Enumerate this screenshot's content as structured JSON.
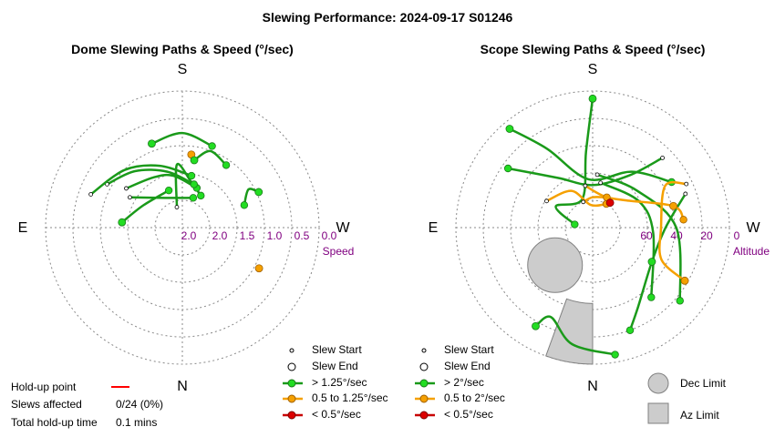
{
  "title": "Slewing Performance: 2024-09-17 S01246",
  "chart_data": [
    {
      "type": "polar",
      "title": "Dome Slewing Paths & Speed (°/sec)",
      "compass": {
        "top": "S",
        "bottom": "N",
        "left": "E",
        "right": "W"
      },
      "radial_axis": {
        "label": "Speed",
        "ticks": [
          "2.0",
          "1.5",
          "1.0",
          "0.5",
          "0.0"
        ],
        "rlim": [
          0,
          2.5
        ]
      },
      "paths": [
        {
          "class": "fast",
          "points": [
            [
              165,
              2.2
            ],
            [
              175,
              1.4
            ],
            [
              190,
              1.7
            ],
            [
              210,
              1.9
            ]
          ]
        },
        {
          "class": "fast",
          "points": [
            [
              125,
              1.3
            ],
            [
              150,
              1.5
            ],
            [
              170,
              1.6
            ],
            [
              200,
              1.8
            ]
          ]
        },
        {
          "class": "fast",
          "points": [
            [
              120,
              0.95
            ],
            [
              140,
              1.2
            ],
            [
              165,
              1.5
            ],
            [
              195,
              1.75
            ]
          ]
        },
        {
          "class": "fast",
          "points": [
            [
              110,
              0.75
            ],
            [
              135,
              1.05
            ],
            [
              160,
              1.35
            ],
            [
              190,
              1.6
            ]
          ]
        },
        {
          "class": "fast",
          "points": [
            [
              160,
              0.9
            ],
            [
              180,
              0.8
            ],
            [
              200,
              0.95
            ]
          ]
        },
        {
          "class": "fast",
          "points": [
            [
              190,
              1.3
            ],
            [
              200,
              1.05
            ],
            [
              215,
              1.15
            ]
          ]
        },
        {
          "class": "fast",
          "points": [
            [
              245,
              1.0
            ],
            [
              240,
              1.15
            ],
            [
              250,
              1.35
            ]
          ]
        },
        {
          "class": "fast",
          "points": [
            [
              95,
              1.45
            ],
            [
              120,
              1.75
            ],
            [
              160,
              1.85
            ]
          ]
        },
        {
          "class": "fast",
          "points": [
            [
              120,
              1.45
            ],
            [
              150,
              1.95
            ],
            [
              200,
              2.0
            ]
          ]
        }
      ],
      "ends": [
        {
          "class": "medium",
          "point": [
            187,
            1.2
          ]
        },
        {
          "class": "medium",
          "point": [
            298,
            0.95
          ]
        },
        {
          "class": "fast",
          "point": [
            160,
            0.9
          ]
        },
        {
          "class": "fast",
          "point": [
            190,
            1.3
          ]
        },
        {
          "class": "fast",
          "point": [
            245,
            1.0
          ]
        },
        {
          "class": "fast",
          "point": [
            95,
            1.45
          ]
        }
      ]
    },
    {
      "type": "polar",
      "title": "Scope Slewing Paths & Speed (°/sec)",
      "compass": {
        "top": "S",
        "bottom": "N",
        "left": "E",
        "right": "W"
      },
      "radial_axis": {
        "label": "Altitude",
        "ticks": [
          "60",
          "40",
          "20",
          "0"
        ],
        "rlim": [
          90,
          0
        ]
      },
      "paths": [
        {
          "class": "fast",
          "points": [
            [
              180,
              5
            ],
            [
              175,
              40
            ],
            [
              160,
              70
            ],
            [
              120,
              62
            ],
            [
              100,
              78
            ]
          ]
        },
        {
          "class": "fast",
          "points": [
            [
              140,
              5
            ],
            [
              150,
              30
            ],
            [
              175,
              58
            ],
            [
              215,
              45
            ],
            [
              240,
              30
            ]
          ]
        },
        {
          "class": "fast",
          "points": [
            [
              225,
              25
            ],
            [
              215,
              48
            ],
            [
              180,
              62
            ],
            [
              145,
              50
            ],
            [
              125,
              22
            ]
          ]
        },
        {
          "class": "fast",
          "points": [
            [
              250,
              25
            ],
            [
              270,
              42
            ],
            [
              300,
              45
            ],
            [
              330,
              30
            ],
            [
              340,
              18
            ]
          ]
        },
        {
          "class": "fast",
          "points": [
            [
              185,
              55
            ],
            [
              230,
              52
            ],
            [
              270,
              35
            ],
            [
              310,
              15
            ]
          ]
        },
        {
          "class": "fast",
          "points": [
            [
              190,
              60
            ],
            [
              240,
              55
            ],
            [
              275,
              50
            ],
            [
              320,
              30
            ]
          ]
        },
        {
          "class": "fast",
          "points": [
            [
              30,
              15
            ],
            [
              25,
              25
            ],
            [
              10,
              12
            ],
            [
              350,
              5
            ]
          ]
        },
        {
          "class": "medium",
          "points": [
            [
              170,
              62
            ],
            [
              200,
              68
            ],
            [
              230,
              62
            ],
            [
              255,
              35
            ],
            [
              265,
              30
            ]
          ]
        },
        {
          "class": "medium",
          "points": [
            [
              120,
              55
            ],
            [
              150,
              62
            ],
            [
              175,
              75
            ],
            [
              210,
              72
            ]
          ]
        },
        {
          "class": "medium",
          "points": [
            [
              245,
              22
            ],
            [
              240,
              35
            ],
            [
              270,
              45
            ],
            [
              295,
              40
            ],
            [
              300,
              20
            ]
          ]
        },
        {
          "class": "medium",
          "points": [
            [
              160,
              72
            ],
            [
              180,
              70
            ],
            [
              205,
              68
            ]
          ]
        }
      ],
      "ends": [
        {
          "class": "fast",
          "point": [
            180,
            5
          ]
        },
        {
          "class": "fast",
          "point": [
            140,
            5
          ]
        },
        {
          "class": "fast",
          "point": [
            30,
            15
          ]
        },
        {
          "class": "fast",
          "point": [
            300,
            45
          ]
        },
        {
          "class": "slow",
          "point": [
            215,
            70
          ]
        },
        {
          "class": "medium",
          "point": [
            255,
            35
          ]
        },
        {
          "class": "medium",
          "point": [
            300,
            20
          ]
        }
      ],
      "limits": [
        {
          "name": "Dec Limit",
          "shape": "circle",
          "center": [
            45,
            55
          ],
          "radius_alt": 18
        },
        {
          "name": "Az Limit",
          "shape": "sector",
          "az": [
            0,
            20
          ],
          "alt": [
            0,
            40
          ]
        }
      ]
    }
  ],
  "legend": {
    "items": [
      {
        "marker": "start",
        "label": "Slew Start"
      },
      {
        "marker": "end",
        "label": "Slew End"
      },
      {
        "marker": "fast",
        "label": "> 1.25°/sec"
      },
      {
        "marker": "medium",
        "label": "0.5 to 1.25°/sec"
      },
      {
        "marker": "slow",
        "label": "< 0.5°/sec"
      }
    ]
  },
  "legend_scope": {
    "items": [
      {
        "marker": "start",
        "label": "Slew Start"
      },
      {
        "marker": "end",
        "label": "Slew End"
      },
      {
        "marker": "fast",
        "label": "> 2°/sec"
      },
      {
        "marker": "medium",
        "label": "0.5 to 2°/sec"
      },
      {
        "marker": "slow",
        "label": "< 0.5°/sec"
      }
    ]
  },
  "limits_legend": {
    "dec": "Dec Limit",
    "az": "Az Limit"
  },
  "holdup": {
    "point_label": "Hold-up point",
    "slews_label": "Slews affected",
    "slews_value": "0/24 (0%)",
    "time_label": "Total hold-up time",
    "time_value": "0.1 mins"
  },
  "colors": {
    "fast": "#1a9a1a",
    "fast_fill": "#22dd22",
    "medium": "#f5a000",
    "medium_fill": "#f5a000",
    "slow": "#c80000",
    "slow_fill": "#dd0000",
    "holdup": "#ff0000",
    "grid": "#888888",
    "tick_label": "#800080",
    "limit_fill": "#cccccc",
    "limit_stroke": "#808080"
  }
}
